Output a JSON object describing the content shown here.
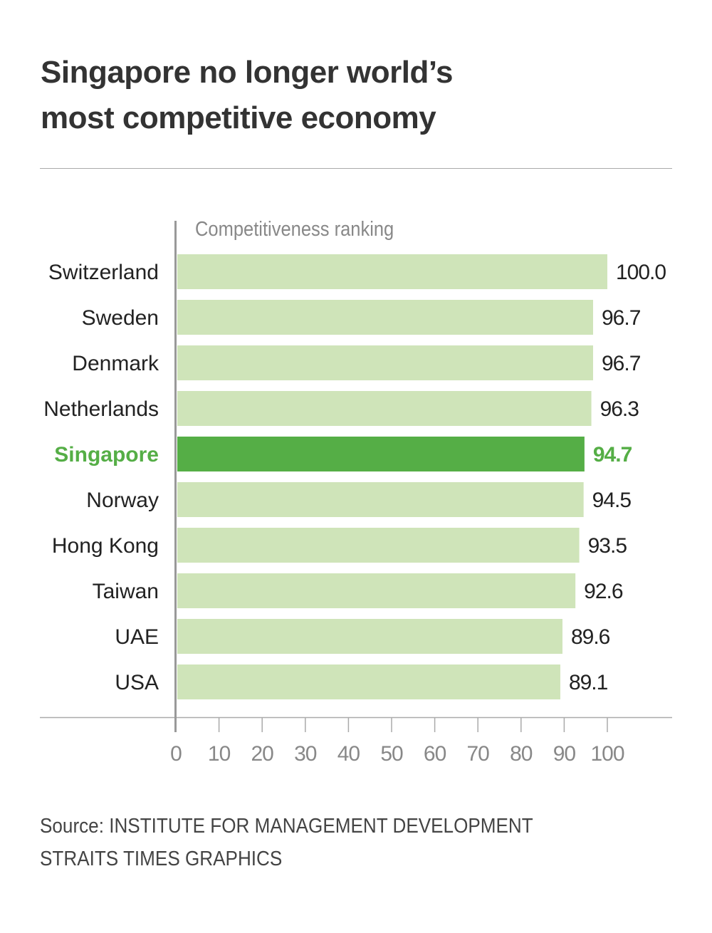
{
  "title_line1": "Singapore no longer world’s",
  "title_line2": "most competitive economy",
  "source": "Source: INSTITUTE FOR MANAGEMENT DEVELOPMENT",
  "credit": "STRAITS TIMES GRAPHICS",
  "chart_data": {
    "type": "bar",
    "orientation": "horizontal",
    "series_label": "Competitiveness ranking",
    "categories": [
      "Switzerland",
      "Sweden",
      "Denmark",
      "Netherlands",
      "Singapore",
      "Norway",
      "Hong Kong",
      "Taiwan",
      "UAE",
      "USA"
    ],
    "values": [
      100.0,
      96.7,
      96.7,
      96.3,
      94.7,
      94.5,
      93.5,
      92.6,
      89.6,
      89.1
    ],
    "value_labels": [
      "100.0",
      "96.7",
      "96.7",
      "96.3",
      "94.7",
      "94.5",
      "93.5",
      "92.6",
      "89.6",
      "89.1"
    ],
    "highlight": "Singapore",
    "xlim": [
      0,
      100
    ],
    "xticks": [
      0,
      10,
      20,
      30,
      40,
      50,
      60,
      70,
      80,
      90,
      100
    ],
    "grid": false,
    "colors": {
      "bar": "#cfe4b9",
      "highlight": "#55ae46",
      "axis": "#999999",
      "tick_label": "#888888"
    }
  }
}
